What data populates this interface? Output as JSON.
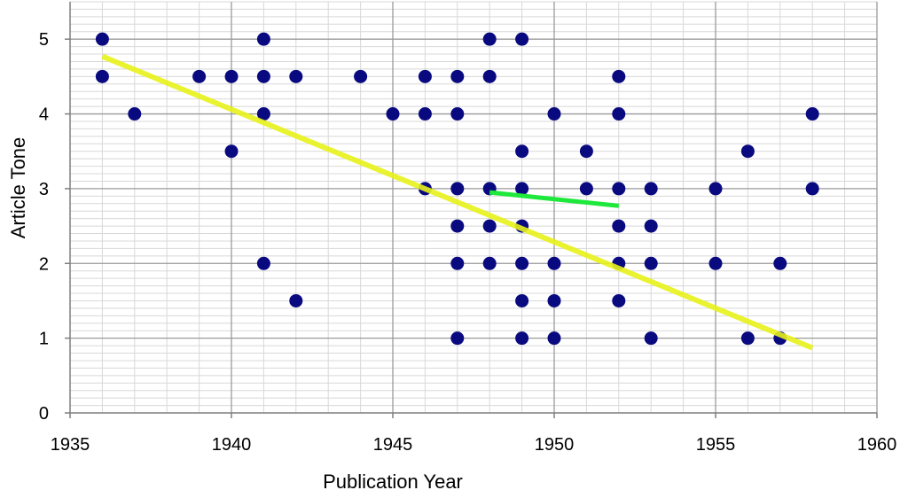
{
  "chart_data": {
    "type": "scatter",
    "xlabel": "Publication Year",
    "ylabel": "Article Tone",
    "xlim": [
      1935,
      1960
    ],
    "ylim": [
      0,
      5.5
    ],
    "x_ticks": [
      1935,
      1940,
      1945,
      1950,
      1955,
      1960
    ],
    "y_ticks": [
      0,
      1,
      2,
      3,
      4,
      5
    ],
    "grid": true,
    "legend": "none",
    "colors": {
      "points": "#0a0a80",
      "trend_overall": "#e8f21a",
      "trend_segment": "#1ee83c",
      "major_grid": "#9a9a9a",
      "minor_grid": "#d8d8d8"
    },
    "points": [
      [
        1936,
        5
      ],
      [
        1936,
        4.5
      ],
      [
        1937,
        4
      ],
      [
        1939,
        4.5
      ],
      [
        1940,
        4.5
      ],
      [
        1940,
        3.5
      ],
      [
        1941,
        5
      ],
      [
        1941,
        4.5
      ],
      [
        1941,
        4
      ],
      [
        1941,
        2
      ],
      [
        1942,
        4.5
      ],
      [
        1942,
        1.5
      ],
      [
        1944,
        4.5
      ],
      [
        1945,
        4
      ],
      [
        1946,
        4.5
      ],
      [
        1946,
        4
      ],
      [
        1946,
        3
      ],
      [
        1947,
        4.5
      ],
      [
        1947,
        4
      ],
      [
        1947,
        3
      ],
      [
        1947,
        2.5
      ],
      [
        1947,
        2
      ],
      [
        1947,
        1
      ],
      [
        1948,
        5
      ],
      [
        1948,
        4.5
      ],
      [
        1948,
        3
      ],
      [
        1948,
        2.5
      ],
      [
        1948,
        2
      ],
      [
        1949,
        5
      ],
      [
        1949,
        3.5
      ],
      [
        1949,
        3
      ],
      [
        1949,
        2.5
      ],
      [
        1949,
        2
      ],
      [
        1949,
        1.5
      ],
      [
        1949,
        1
      ],
      [
        1950,
        4
      ],
      [
        1950,
        2
      ],
      [
        1950,
        1.5
      ],
      [
        1950,
        1
      ],
      [
        1951,
        3.5
      ],
      [
        1951,
        3
      ],
      [
        1952,
        4.5
      ],
      [
        1952,
        4
      ],
      [
        1952,
        3
      ],
      [
        1952,
        2.5
      ],
      [
        1952,
        2
      ],
      [
        1952,
        1.5
      ],
      [
        1953,
        3
      ],
      [
        1953,
        2.5
      ],
      [
        1953,
        2
      ],
      [
        1953,
        1
      ],
      [
        1955,
        3
      ],
      [
        1955,
        2
      ],
      [
        1956,
        3.5
      ],
      [
        1956,
        1
      ],
      [
        1957,
        2
      ],
      [
        1957,
        1
      ],
      [
        1958,
        4
      ],
      [
        1958,
        3
      ]
    ],
    "trend_lines": [
      {
        "points": [
          [
            1936,
            4.77
          ],
          [
            1958,
            0.87
          ]
        ]
      },
      {
        "points": [
          [
            1948,
            2.95
          ],
          [
            1952,
            2.77
          ]
        ]
      }
    ]
  }
}
